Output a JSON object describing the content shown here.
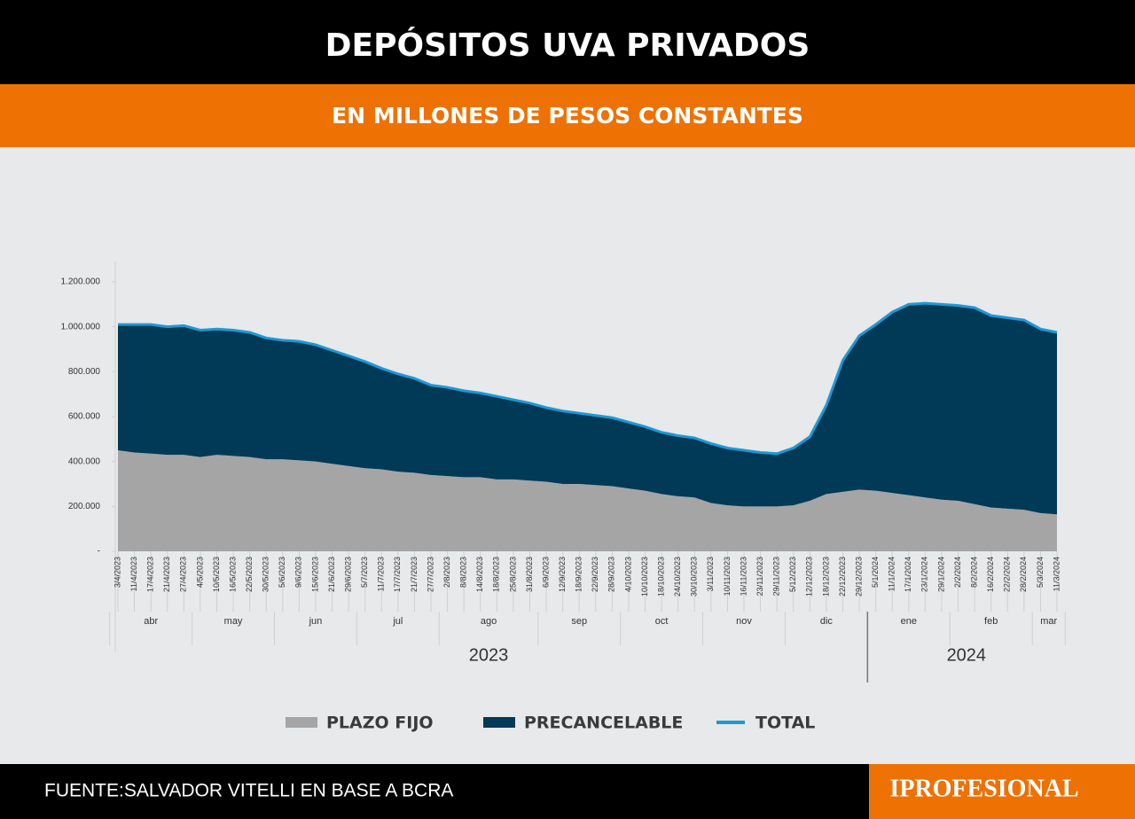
{
  "chart_data": {
    "type": "stacked-area",
    "title": "DEPÓSITOS UVA PRIVADOS",
    "subtitle": "EN MILLONES DE PESOS CONSTANTES",
    "source": "FUENTE:SALVADOR VITELLI EN BASE A BCRA",
    "logo": "IPROFESIONAL",
    "categories": [
      "3/4/2023",
      "11/4/2023",
      "17/4/2023",
      "21/4/2023",
      "27/4/2023",
      "4/5/2023",
      "10/5/2023",
      "16/5/2023",
      "22/5/2023",
      "30/5/2023",
      "5/6/2023",
      "9/6/2023",
      "15/6/2023",
      "21/6/2023",
      "29/6/2023",
      "5/7/2023",
      "11/7/2023",
      "17/7/2023",
      "21/7/2023",
      "27/7/2023",
      "2/8/2023",
      "8/8/2023",
      "14/8/2023",
      "18/8/2023",
      "25/8/2023",
      "31/8/2023",
      "6/9/2023",
      "12/9/2023",
      "18/9/2023",
      "22/9/2023",
      "28/9/2023",
      "4/10/2023",
      "10/10/2023",
      "18/10/2023",
      "24/10/2023",
      "30/10/2023",
      "3/11/2023",
      "10/11/2023",
      "16/11/2023",
      "23/11/2023",
      "29/11/2023",
      "5/12/2023",
      "12/12/2023",
      "18/12/2023",
      "22/12/2023",
      "29/12/2023",
      "5/1/2024",
      "11/1/2024",
      "17/1/2024",
      "23/1/2024",
      "29/1/2024",
      "2/2/2024",
      "8/2/2024",
      "16/2/2024",
      "22/2/2024",
      "28/2/2024",
      "5/3/2024",
      "11/3/2024"
    ],
    "months": [
      "abr",
      "may",
      "jun",
      "jul",
      "ago",
      "sep",
      "oct",
      "nov",
      "dic",
      "ene",
      "feb",
      "mar"
    ],
    "years": [
      "2023",
      "2024"
    ],
    "series": [
      {
        "name": "PLAZO FIJO",
        "color": "#a5a5a5",
        "values": [
          450000,
          440000,
          435000,
          430000,
          430000,
          420000,
          430000,
          425000,
          420000,
          410000,
          410000,
          405000,
          400000,
          390000,
          380000,
          370000,
          365000,
          355000,
          350000,
          340000,
          335000,
          330000,
          330000,
          320000,
          320000,
          315000,
          310000,
          300000,
          300000,
          295000,
          290000,
          280000,
          270000,
          255000,
          245000,
          240000,
          215000,
          205000,
          200000,
          200000,
          200000,
          205000,
          225000,
          255000,
          265000,
          275000,
          270000,
          260000,
          250000,
          240000,
          230000,
          225000,
          210000,
          195000,
          190000,
          185000,
          170000,
          165000
        ]
      },
      {
        "name": "PRECANCELABLE",
        "color": "#003a57",
        "values": [
          560000,
          570000,
          575000,
          570000,
          575000,
          565000,
          560000,
          560000,
          555000,
          540000,
          530000,
          530000,
          520000,
          505000,
          490000,
          475000,
          450000,
          435000,
          420000,
          400000,
          395000,
          385000,
          375000,
          370000,
          355000,
          345000,
          330000,
          325000,
          315000,
          310000,
          305000,
          295000,
          285000,
          275000,
          270000,
          265000,
          265000,
          255000,
          250000,
          240000,
          235000,
          255000,
          285000,
          395000,
          585000,
          685000,
          740000,
          805000,
          850000,
          865000,
          870000,
          870000,
          875000,
          855000,
          850000,
          845000,
          820000,
          810000
        ]
      },
      {
        "name": "TOTAL",
        "color": "#1b9ad6",
        "line": true,
        "values": [
          1010000,
          1010000,
          1010000,
          1000000,
          1005000,
          985000,
          990000,
          985000,
          975000,
          950000,
          940000,
          935000,
          920000,
          895000,
          870000,
          845000,
          815000,
          790000,
          770000,
          740000,
          730000,
          715000,
          705000,
          690000,
          675000,
          660000,
          640000,
          625000,
          615000,
          605000,
          595000,
          575000,
          555000,
          530000,
          515000,
          505000,
          480000,
          460000,
          450000,
          440000,
          435000,
          460000,
          510000,
          650000,
          850000,
          960000,
          1010000,
          1065000,
          1100000,
          1105000,
          1100000,
          1095000,
          1085000,
          1050000,
          1040000,
          1030000,
          990000,
          975000
        ]
      }
    ],
    "ylim": [
      0,
      1200000
    ],
    "yticks": [
      {
        "value": 0,
        "label": "-"
      },
      {
        "value": 200000,
        "label": "200.000"
      },
      {
        "value": 400000,
        "label": "400.000"
      },
      {
        "value": 600000,
        "label": "600.000"
      },
      {
        "value": 800000,
        "label": "800.000"
      },
      {
        "value": 1000000,
        "label": "1.000.000"
      },
      {
        "value": 1200000,
        "label": "1.200.000"
      }
    ]
  }
}
